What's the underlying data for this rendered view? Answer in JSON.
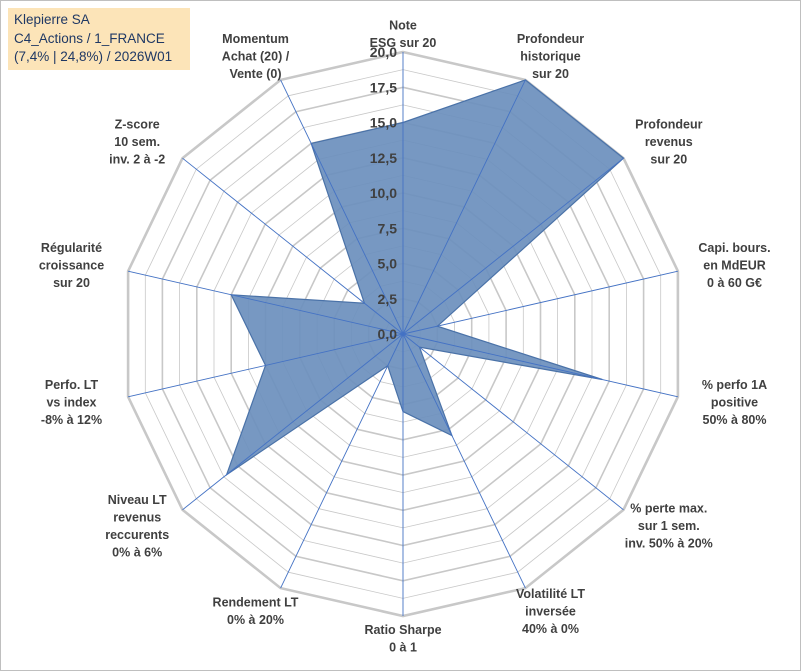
{
  "chart_data": {
    "type": "radar",
    "title": [
      "Klepierre SA",
      "C4_Actions / 1_FRANCE",
      "(7,4% | 24,8%) / 2026W01"
    ],
    "axes": [
      [
        "Note",
        "ESG sur 20"
      ],
      [
        "Profondeur",
        "historique",
        "sur 20"
      ],
      [
        "Profondeur",
        "revenus",
        "sur 20"
      ],
      [
        "Capi. bours.",
        "en MdEUR",
        "0 à 60 G€"
      ],
      [
        "% perfo 1A",
        "positive",
        "50% à 80%"
      ],
      [
        "% perte max.",
        "sur 1 sem.",
        "inv. 50% à 20%"
      ],
      [
        "Volatilité LT",
        "inversée",
        "40% à 0%"
      ],
      [
        "Ratio Sharpe",
        "0 à 1"
      ],
      [
        "Rendement LT",
        "0% à 20%"
      ],
      [
        "Niveau LT",
        "revenus",
        "reccurents",
        "0% à 6%"
      ],
      [
        "Perfo. LT",
        "vs index",
        "-8% à 12%"
      ],
      [
        "Régularité",
        "croissance",
        "sur 20"
      ],
      [
        "Z-score",
        "10 sem.",
        "inv. 2 à -2"
      ],
      [
        "Momentum",
        "Achat (20) /",
        "Vente (0)"
      ]
    ],
    "values": [
      15.0,
      20.0,
      20.0,
      2.5,
      14.5,
      1.5,
      8.0,
      5.5,
      2.5,
      16.0,
      10.0,
      12.5,
      3.5,
      15.0
    ],
    "rlim": [
      0,
      20
    ],
    "ticks": [
      "0,0",
      "2,5",
      "5,0",
      "7,5",
      "10,0",
      "12,5",
      "15,0",
      "17,5",
      "20,0"
    ],
    "series_color": "#6b8fbd",
    "series_edge": "#4a72a8",
    "grid_color": "#c8c8c8",
    "spoke_color": "#4472c4"
  }
}
